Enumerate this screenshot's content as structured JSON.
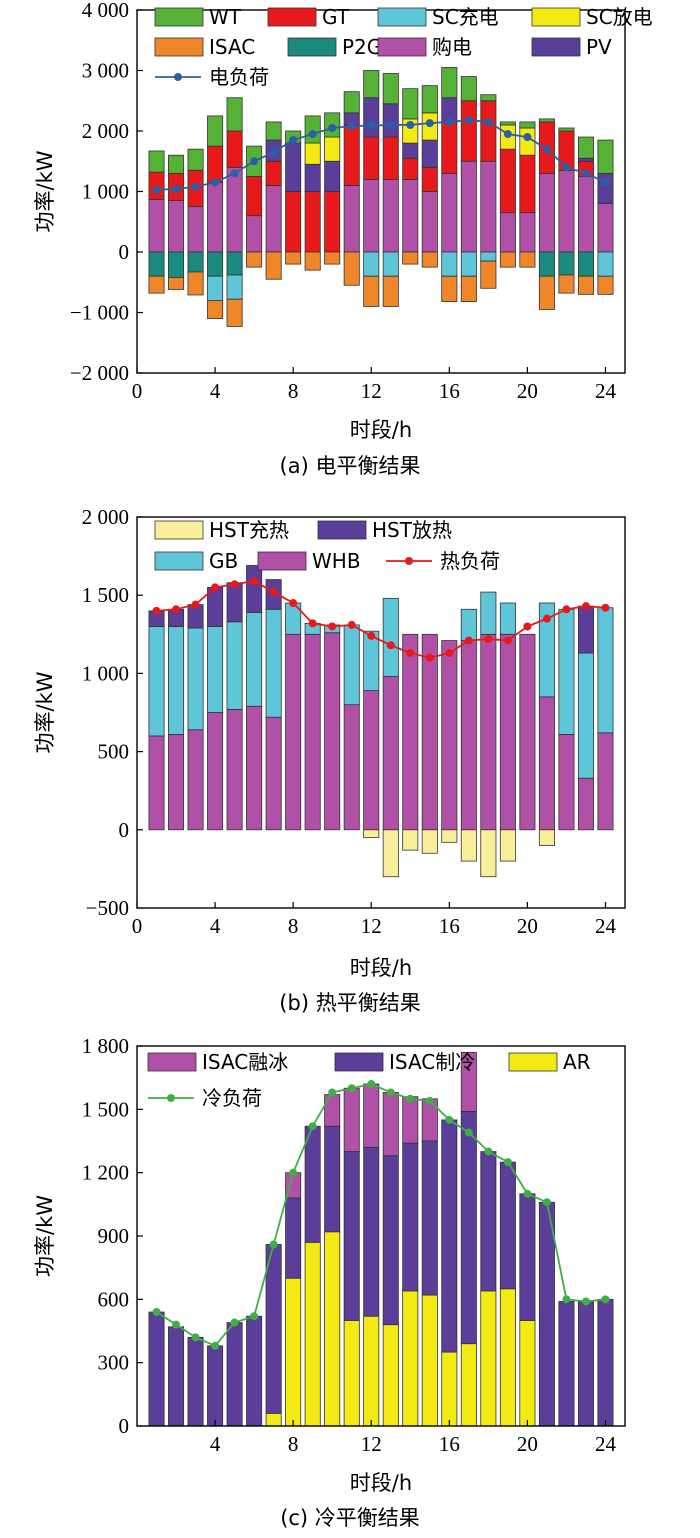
{
  "chart_data": [
    {
      "type": "bar",
      "caption": "(a)  电平衡结果",
      "xlabel": "时段/h",
      "ylabel": "功率/kW",
      "xlim": [
        0,
        25
      ],
      "ylim": [
        -2000,
        4000
      ],
      "xticks": [
        0,
        4,
        8,
        12,
        16,
        20,
        24
      ],
      "xtick_labels": [
        "0",
        "4",
        "8",
        "12",
        "16",
        "20",
        "24"
      ],
      "yticks": [
        -2000,
        -1000,
        0,
        1000,
        2000,
        3000,
        4000
      ],
      "ytick_labels": [
        "−2 000",
        "−1 000",
        "0",
        "1 000",
        "2 000",
        "3 000",
        "4 000"
      ],
      "x": [
        1,
        2,
        3,
        4,
        5,
        6,
        7,
        8,
        9,
        10,
        11,
        12,
        13,
        14,
        15,
        16,
        17,
        18,
        19,
        20,
        21,
        22,
        23,
        24
      ],
      "stack_order": [
        "购电",
        "GT",
        "PV",
        "SC放电",
        "WT"
      ],
      "negative_order": [
        "P2G",
        "SC充电",
        "ISAC"
      ],
      "series": [
        {
          "name": "WT",
          "color": "#55b236",
          "values": [
            350,
            300,
            350,
            500,
            550,
            500,
            300,
            200,
            450,
            400,
            350,
            450,
            500,
            500,
            450,
            500,
            400,
            100,
            50,
            100,
            50,
            50,
            350,
            550
          ]
        },
        {
          "name": "GT",
          "color": "#e8191b",
          "values": [
            450,
            450,
            600,
            600,
            600,
            650,
            400,
            1000,
            1000,
            1000,
            1000,
            700,
            700,
            350,
            400,
            850,
            1000,
            1000,
            1050,
            950,
            850,
            650,
            250,
            0
          ]
        },
        {
          "name": "SC充电",
          "color": "#5fc6d9",
          "values": [
            0,
            0,
            0,
            -400,
            -400,
            0,
            0,
            0,
            0,
            0,
            0,
            -400,
            -400,
            0,
            0,
            -400,
            -400,
            -150,
            0,
            0,
            0,
            0,
            0,
            -400
          ]
        },
        {
          "name": "SC放电",
          "color": "#f2ea12",
          "values": [
            0,
            0,
            0,
            0,
            0,
            0,
            0,
            0,
            350,
            400,
            0,
            0,
            0,
            400,
            450,
            0,
            0,
            0,
            400,
            450,
            0,
            0,
            0,
            0
          ]
        },
        {
          "name": "ISAC",
          "color": "#f0862a",
          "values": [
            -280,
            -200,
            -380,
            -300,
            -450,
            -250,
            -450,
            -200,
            -300,
            -200,
            -550,
            -500,
            -500,
            -200,
            -250,
            -420,
            -420,
            -450,
            -250,
            -250,
            -550,
            -300,
            -300,
            -300
          ]
        },
        {
          "name": "P2G",
          "color": "#1a8a7e",
          "values": [
            -400,
            -420,
            -330,
            -400,
            -380,
            0,
            0,
            0,
            0,
            0,
            0,
            0,
            0,
            0,
            0,
            0,
            0,
            0,
            0,
            0,
            -400,
            -380,
            -400,
            0
          ]
        },
        {
          "name": "购电",
          "color": "#b150a7",
          "values": [
            870,
            850,
            750,
            1150,
            1400,
            600,
            1100,
            0,
            0,
            0,
            1100,
            1200,
            1200,
            1200,
            1000,
            1300,
            1500,
            1500,
            650,
            650,
            1300,
            1350,
            1250,
            800
          ]
        },
        {
          "name": "PV",
          "color": "#5b3d9a",
          "values": [
            0,
            0,
            0,
            0,
            0,
            0,
            350,
            800,
            450,
            500,
            200,
            650,
            550,
            250,
            450,
            400,
            0,
            0,
            0,
            0,
            0,
            0,
            50,
            500
          ]
        }
      ],
      "load": {
        "name": "电负荷",
        "color": "#2a5fa8",
        "values": [
          1030,
          1040,
          1080,
          1150,
          1300,
          1500,
          1650,
          1850,
          1950,
          2050,
          2080,
          2090,
          2100,
          2100,
          2130,
          2150,
          2180,
          2150,
          1950,
          1900,
          1700,
          1400,
          1300,
          1150
        ]
      },
      "legend_rows": [
        [
          "WT",
          "GT",
          "SC充电",
          "SC放电"
        ],
        [
          "ISAC",
          "P2G",
          "购电",
          "PV"
        ],
        [
          "电负荷"
        ]
      ]
    },
    {
      "type": "bar",
      "caption": "(b)  热平衡结果",
      "xlabel": "时段/h",
      "ylabel": "功率/kW",
      "xlim": [
        0,
        25
      ],
      "ylim": [
        -500,
        2000
      ],
      "xticks": [
        0,
        4,
        8,
        12,
        16,
        20,
        24
      ],
      "xtick_labels": [
        "0",
        "4",
        "8",
        "12",
        "16",
        "20",
        "24"
      ],
      "yticks": [
        -500,
        0,
        500,
        1000,
        1500,
        2000
      ],
      "ytick_labels": [
        "−500",
        "0",
        "500",
        "1 000",
        "1 500",
        "2 000"
      ],
      "x": [
        1,
        2,
        3,
        4,
        5,
        6,
        7,
        8,
        9,
        10,
        11,
        12,
        13,
        14,
        15,
        16,
        17,
        18,
        19,
        20,
        21,
        22,
        23,
        24
      ],
      "stack_order": [
        "WHB",
        "GB",
        "HST放热"
      ],
      "negative_order": [
        "HST充热"
      ],
      "series": [
        {
          "name": "HST充热",
          "color": "#f9ef9a",
          "values": [
            0,
            0,
            0,
            0,
            0,
            0,
            0,
            0,
            0,
            0,
            0,
            -50,
            -300,
            -130,
            -150,
            -80,
            -200,
            -300,
            -200,
            0,
            -100,
            0,
            0,
            0
          ]
        },
        {
          "name": "HST放热",
          "color": "#5b3d9a",
          "values": [
            100,
            110,
            150,
            250,
            250,
            300,
            190,
            0,
            0,
            0,
            0,
            0,
            0,
            0,
            0,
            0,
            0,
            0,
            0,
            0,
            0,
            0,
            300,
            0
          ]
        },
        {
          "name": "GB",
          "color": "#5fc6d9",
          "values": [
            700,
            690,
            650,
            550,
            560,
            600,
            690,
            200,
            70,
            50,
            510,
            380,
            500,
            0,
            0,
            0,
            200,
            270,
            200,
            0,
            600,
            800,
            800,
            800
          ]
        },
        {
          "name": "WHB",
          "color": "#b150a7",
          "values": [
            600,
            610,
            640,
            750,
            770,
            790,
            720,
            1250,
            1250,
            1260,
            800,
            890,
            980,
            1250,
            1250,
            1210,
            1210,
            1250,
            1250,
            1250,
            850,
            610,
            330,
            620
          ]
        }
      ],
      "load": {
        "name": "热负荷",
        "color": "#e8191b",
        "values": [
          1400,
          1410,
          1440,
          1550,
          1570,
          1590,
          1520,
          1450,
          1320,
          1300,
          1310,
          1240,
          1180,
          1130,
          1100,
          1130,
          1210,
          1220,
          1210,
          1300,
          1350,
          1410,
          1430,
          1420
        ]
      },
      "legend_rows": [
        [
          "HST充热",
          "HST放热"
        ],
        [
          "GB",
          "WHB",
          "热负荷"
        ]
      ]
    },
    {
      "type": "bar",
      "caption": "(c)  冷平衡结果",
      "xlabel": "时段/h",
      "ylabel": "功率/kW",
      "xlim": [
        0,
        25
      ],
      "ylim": [
        0,
        1800
      ],
      "xticks": [
        4,
        8,
        12,
        16,
        20,
        24
      ],
      "xtick_labels": [
        "4",
        "8",
        "12",
        "16",
        "20",
        "24"
      ],
      "yticks": [
        0,
        300,
        600,
        900,
        1200,
        1500,
        1800
      ],
      "ytick_labels": [
        "0",
        "300",
        "600",
        "900",
        "1 200",
        "1 500",
        "1 800"
      ],
      "x": [
        1,
        2,
        3,
        4,
        5,
        6,
        7,
        8,
        9,
        10,
        11,
        12,
        13,
        14,
        15,
        16,
        17,
        18,
        19,
        20,
        21,
        22,
        23,
        24
      ],
      "stack_order": [
        "AR",
        "ISAC制冷",
        "ISAC融冰"
      ],
      "negative_order": [],
      "series": [
        {
          "name": "ISAC融冰",
          "color": "#b150a7",
          "values": [
            0,
            0,
            0,
            0,
            0,
            0,
            0,
            120,
            0,
            150,
            300,
            300,
            300,
            220,
            200,
            0,
            280,
            0,
            0,
            0,
            0,
            0,
            0,
            0
          ]
        },
        {
          "name": "ISAC制冷",
          "color": "#5b3d9a",
          "values": [
            540,
            470,
            420,
            380,
            490,
            520,
            800,
            380,
            550,
            500,
            800,
            800,
            800,
            700,
            730,
            1100,
            1100,
            660,
            600,
            600,
            1060,
            590,
            590,
            600
          ]
        },
        {
          "name": "AR",
          "color": "#f2ea12",
          "values": [
            0,
            0,
            0,
            0,
            0,
            0,
            60,
            700,
            870,
            920,
            500,
            520,
            480,
            640,
            620,
            350,
            390,
            640,
            650,
            500,
            0,
            0,
            0,
            0
          ]
        }
      ],
      "load": {
        "name": "冷负荷",
        "color": "#3fae49",
        "values": [
          540,
          480,
          420,
          380,
          490,
          520,
          860,
          1200,
          1420,
          1580,
          1600,
          1620,
          1580,
          1550,
          1540,
          1450,
          1390,
          1300,
          1250,
          1100,
          1060,
          600,
          590,
          600
        ]
      },
      "legend_rows": [
        [
          "ISAC融冰",
          "ISAC制冷",
          "AR"
        ],
        [
          "冷负荷"
        ]
      ]
    }
  ]
}
